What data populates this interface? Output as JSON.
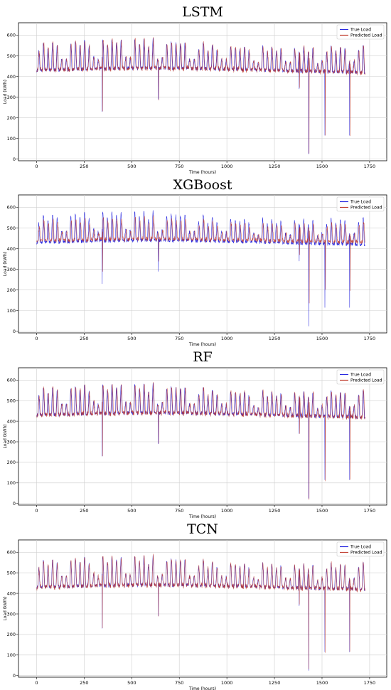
{
  "chart_data": [
    {
      "type": "line",
      "title": "LSTM",
      "xlabel": "Time (hours)",
      "ylabel": "Load (kWh)",
      "xlim": [
        -95,
        1840
      ],
      "ylim": [
        -8,
        660
      ],
      "xticks": [
        0,
        250,
        500,
        750,
        1000,
        1250,
        1500,
        1750
      ],
      "yticks": [
        0,
        100,
        200,
        300,
        400,
        500,
        600
      ],
      "grid": true,
      "legend_position": "top-right",
      "series": [
        {
          "name": "True Load",
          "color": "#2a2ae0"
        },
        {
          "name": "Predicted Load",
          "color": "#c0392b"
        }
      ],
      "drops": [
        {
          "x": 345,
          "y": 230
        },
        {
          "x": 640,
          "y": 290
        },
        {
          "x": 1380,
          "y": 340
        },
        {
          "x": 1430,
          "y": 25
        },
        {
          "x": 1515,
          "y": 115
        },
        {
          "x": 1645,
          "y": 115
        }
      ]
    },
    {
      "type": "line",
      "title": "XGBoost",
      "xlabel": "Time (hours)",
      "ylabel": "Load (kWh)",
      "xlim": [
        -95,
        1840
      ],
      "ylim": [
        -8,
        660
      ],
      "xticks": [
        0,
        250,
        500,
        750,
        1000,
        1250,
        1500,
        1750
      ],
      "yticks": [
        0,
        100,
        200,
        300,
        400,
        500,
        600
      ],
      "grid": true,
      "legend_position": "top-right",
      "series": [
        {
          "name": "True Load",
          "color": "#2a2ae0"
        },
        {
          "name": "Predicted Load",
          "color": "#c0392b"
        }
      ],
      "drops": [
        {
          "x": 345,
          "y": 230
        },
        {
          "x": 640,
          "y": 290
        },
        {
          "x": 1380,
          "y": 340
        },
        {
          "x": 1430,
          "y": 25
        },
        {
          "x": 1515,
          "y": 115
        },
        {
          "x": 1645,
          "y": 115
        }
      ]
    },
    {
      "type": "line",
      "title": "RF",
      "xlabel": "Time (hours)",
      "ylabel": "Load (kWh)",
      "xlim": [
        -95,
        1840
      ],
      "ylim": [
        -8,
        660
      ],
      "xticks": [
        0,
        250,
        500,
        750,
        1000,
        1250,
        1500,
        1750
      ],
      "yticks": [
        0,
        100,
        200,
        300,
        400,
        500,
        600
      ],
      "grid": true,
      "legend_position": "top-right",
      "series": [
        {
          "name": "True Load",
          "color": "#2a2ae0"
        },
        {
          "name": "Predicted Load",
          "color": "#c0392b"
        }
      ],
      "drops": [
        {
          "x": 345,
          "y": 230
        },
        {
          "x": 640,
          "y": 290
        },
        {
          "x": 1380,
          "y": 340
        },
        {
          "x": 1430,
          "y": 25
        },
        {
          "x": 1515,
          "y": 115
        },
        {
          "x": 1645,
          "y": 115
        }
      ]
    },
    {
      "type": "line",
      "title": "TCN",
      "xlabel": "Time (hours)",
      "ylabel": "Load (kWh)",
      "xlim": [
        -95,
        1840
      ],
      "ylim": [
        -8,
        660
      ],
      "xticks": [
        0,
        250,
        500,
        750,
        1000,
        1250,
        1500,
        1750
      ],
      "yticks": [
        0,
        100,
        200,
        300,
        400,
        500,
        600
      ],
      "grid": true,
      "legend_position": "top-right",
      "series": [
        {
          "name": "True Load",
          "color": "#2a2ae0"
        },
        {
          "name": "Predicted Load",
          "color": "#c0392b"
        }
      ],
      "drops": [
        {
          "x": 345,
          "y": 230
        },
        {
          "x": 640,
          "y": 290
        },
        {
          "x": 1380,
          "y": 340
        },
        {
          "x": 1430,
          "y": 25
        },
        {
          "x": 1515,
          "y": 115
        },
        {
          "x": 1645,
          "y": 115
        }
      ]
    }
  ]
}
